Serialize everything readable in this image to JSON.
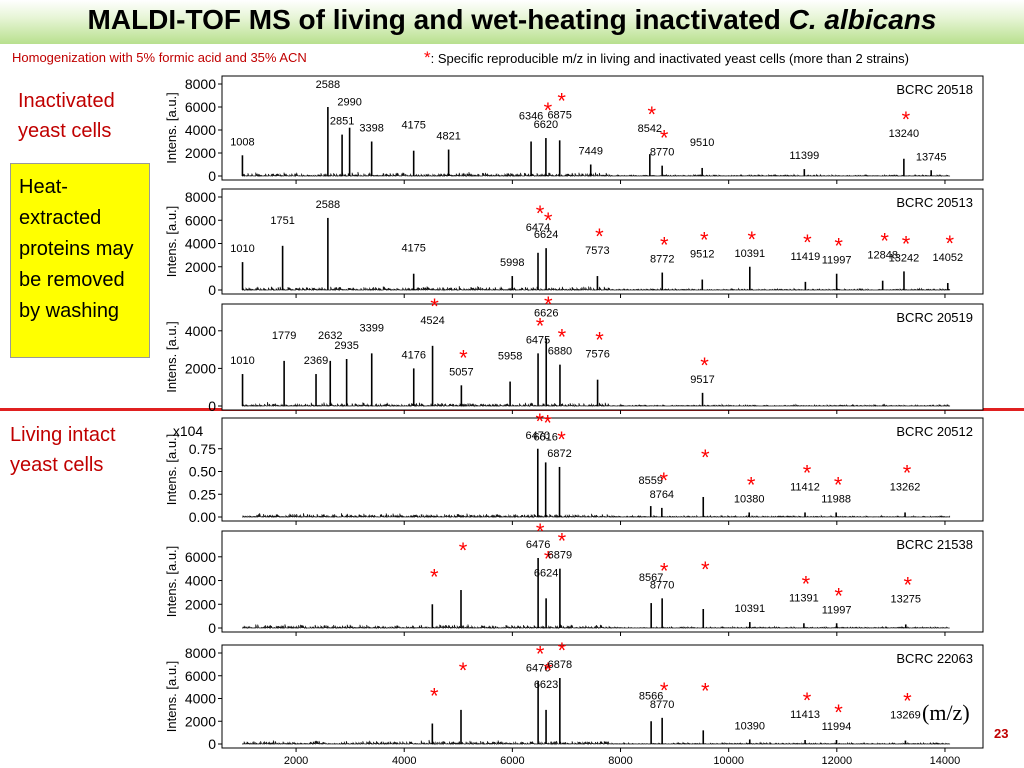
{
  "title": {
    "main": "MALDI-TOF MS of living and wet-heating inactivated ",
    "species": "C. albicans"
  },
  "subtitle_left": "Homogenization with 5% formic acid and 35% ACN",
  "legend_note": {
    "star": "*",
    "text": ": Specific reproducible m/z in living and inactivated yeast cells (more than 2 strains)"
  },
  "group_labels": {
    "inactivated": "Inactivated yeast cells",
    "living": "Living intact yeast cells"
  },
  "heat_box": "Heat-extracted proteins may be removed by washing",
  "mz_label": "(m/z)",
  "page_number": "23",
  "colors": {
    "star": "#ff0000",
    "divider": "#e02020",
    "label_red": "#c00000",
    "box": "#ffff00",
    "title_bar": "#b8e08e"
  },
  "chart_data": [
    {
      "type": "line",
      "strain": "BCRC 20518",
      "ylabel": "Intens. [a.u.]",
      "xlim": [
        1000,
        14500
      ],
      "ylim": [
        0,
        8000
      ],
      "yticks": [
        0,
        2000,
        4000,
        6000,
        8000
      ],
      "ytick_labels": [
        "0",
        "2000",
        "4000",
        "6000",
        "8000"
      ],
      "peaks": [
        {
          "mz": 1008,
          "y": 1800,
          "label": "1008"
        },
        {
          "mz": 2588,
          "y": 6000,
          "label": "2588"
        },
        {
          "mz": 2851,
          "y": 3600,
          "label": "2851"
        },
        {
          "mz": 2990,
          "y": 4200,
          "label": "2990"
        },
        {
          "mz": 3398,
          "y": 3000,
          "label": "3398"
        },
        {
          "mz": 4175,
          "y": 2200,
          "label": "4175"
        },
        {
          "mz": 4821,
          "y": 2300,
          "label": "4821"
        },
        {
          "mz": 6346,
          "y": 3000,
          "label": "6346"
        },
        {
          "mz": 6620,
          "y": 3300,
          "label": "6620",
          "star": true
        },
        {
          "mz": 6875,
          "y": 3100,
          "label": "6875",
          "star": true
        },
        {
          "mz": 7449,
          "y": 1000,
          "label": "7449"
        },
        {
          "mz": 8542,
          "y": 1900,
          "label": "8542",
          "star": true
        },
        {
          "mz": 8770,
          "y": 900,
          "label": "8770",
          "star": true
        },
        {
          "mz": 9510,
          "y": 700,
          "label": "9510"
        },
        {
          "mz": 11399,
          "y": 600,
          "label": "11399"
        },
        {
          "mz": 13240,
          "y": 1500,
          "label": "13240",
          "star": true
        },
        {
          "mz": 13745,
          "y": 500,
          "label": "13745"
        }
      ]
    },
    {
      "type": "line",
      "strain": "BCRC 20513",
      "ylabel": "Intens. [a.u.]",
      "xlim": [
        1000,
        14500
      ],
      "ylim": [
        0,
        8000
      ],
      "yticks": [
        0,
        2000,
        4000,
        6000,
        8000
      ],
      "ytick_labels": [
        "0",
        "2000",
        "4000",
        "6000",
        "8000"
      ],
      "peaks": [
        {
          "mz": 1010,
          "y": 2400,
          "label": "1010"
        },
        {
          "mz": 1751,
          "y": 3800,
          "label": "1751"
        },
        {
          "mz": 2588,
          "y": 6200,
          "label": "2588"
        },
        {
          "mz": 4175,
          "y": 1400,
          "label": "4175"
        },
        {
          "mz": 5998,
          "y": 1200,
          "label": "5998"
        },
        {
          "mz": 6474,
          "y": 3200,
          "label": "6474",
          "star": true
        },
        {
          "mz": 6624,
          "y": 3600,
          "label": "6624",
          "star": true
        },
        {
          "mz": 7573,
          "y": 1200,
          "label": "7573",
          "star": true
        },
        {
          "mz": 8772,
          "y": 1500,
          "label": "8772",
          "star": true
        },
        {
          "mz": 9512,
          "y": 900,
          "label": "9512",
          "star": true
        },
        {
          "mz": 10391,
          "y": 2000,
          "label": "10391",
          "star": true
        },
        {
          "mz": 11419,
          "y": 700,
          "label": "11419",
          "star": true
        },
        {
          "mz": 11997,
          "y": 1400,
          "label": "11997",
          "star": true
        },
        {
          "mz": 12848,
          "y": 800,
          "label": "12848",
          "star": true
        },
        {
          "mz": 13242,
          "y": 1600,
          "label": "13242",
          "star": true
        },
        {
          "mz": 14052,
          "y": 600,
          "label": "14052",
          "star": true
        }
      ]
    },
    {
      "type": "line",
      "strain": "BCRC 20519",
      "ylabel": "Intens. [a.u.]",
      "xlim": [
        1000,
        14500
      ],
      "ylim": [
        0,
        5000
      ],
      "yticks": [
        0,
        2000,
        4000
      ],
      "ytick_labels": [
        "0",
        "2000",
        "4000"
      ],
      "peaks": [
        {
          "mz": 1010,
          "y": 1700,
          "label": "1010"
        },
        {
          "mz": 1779,
          "y": 2400,
          "label": "1779"
        },
        {
          "mz": 2369,
          "y": 1700,
          "label": "2369"
        },
        {
          "mz": 2632,
          "y": 2400,
          "label": "2632"
        },
        {
          "mz": 2935,
          "y": 2500,
          "label": "2935"
        },
        {
          "mz": 3399,
          "y": 2800,
          "label": "3399"
        },
        {
          "mz": 4176,
          "y": 2000,
          "label": "4176"
        },
        {
          "mz": 4524,
          "y": 3200,
          "label": "4524",
          "star": true
        },
        {
          "mz": 5057,
          "y": 1100,
          "label": "5057",
          "star": true
        },
        {
          "mz": 5958,
          "y": 1300,
          "label": "5958"
        },
        {
          "mz": 6475,
          "y": 2800,
          "label": "6475",
          "star": true
        },
        {
          "mz": 6626,
          "y": 3600,
          "label": "6626",
          "star": true
        },
        {
          "mz": 6880,
          "y": 2200,
          "label": "6880",
          "star": true
        },
        {
          "mz": 7576,
          "y": 1400,
          "label": "7576",
          "star": true
        },
        {
          "mz": 9517,
          "y": 700,
          "label": "9517",
          "star": true
        }
      ]
    },
    {
      "type": "line",
      "strain": "BCRC 20512",
      "ylabel": "Intens. [a.u.]",
      "xlim": [
        1000,
        14500
      ],
      "ylim": [
        0,
        1
      ],
      "yticks": [
        0,
        0.25,
        0.5,
        0.75
      ],
      "ytick_labels": [
        "0.00",
        "0.25",
        "0.50",
        "0.75"
      ],
      "y_multiplier": "x10^4",
      "peaks": [
        {
          "mz": 6470,
          "y": 0.75,
          "label": "6470",
          "star": true
        },
        {
          "mz": 6616,
          "y": 0.6,
          "label": "6616",
          "star": true
        },
        {
          "mz": 6872,
          "y": 0.55,
          "label": "6872",
          "star": true
        },
        {
          "mz": 8559,
          "y": 0.12,
          "label": "8559"
        },
        {
          "mz": 8764,
          "y": 0.1,
          "label": "8764",
          "star": true
        },
        {
          "mz": 9530,
          "y": 0.22,
          "label": "",
          "star": true
        },
        {
          "mz": 10380,
          "y": 0.05,
          "label": "10380",
          "star": true
        },
        {
          "mz": 11412,
          "y": 0.05,
          "label": "11412",
          "star": true
        },
        {
          "mz": 11988,
          "y": 0.05,
          "label": "11988",
          "star": true
        },
        {
          "mz": 13262,
          "y": 0.05,
          "label": "13262",
          "star": true
        }
      ]
    },
    {
      "type": "line",
      "strain": "BCRC 21538",
      "ylabel": "Intens. [a.u.]",
      "xlim": [
        1000,
        14500
      ],
      "ylim": [
        0,
        7500
      ],
      "yticks": [
        0,
        2000,
        4000,
        6000
      ],
      "ytick_labels": [
        "0",
        "2000",
        "4000",
        "6000"
      ],
      "peaks": [
        {
          "mz": 4520,
          "y": 2000,
          "label": "",
          "star": true
        },
        {
          "mz": 5050,
          "y": 3200,
          "label": "",
          "star": true
        },
        {
          "mz": 6476,
          "y": 5900,
          "label": "6476",
          "star": true
        },
        {
          "mz": 6624,
          "y": 2500,
          "label": "6624",
          "star": true
        },
        {
          "mz": 6879,
          "y": 5000,
          "label": "6879",
          "star": true
        },
        {
          "mz": 8567,
          "y": 2100,
          "label": "8567"
        },
        {
          "mz": 8770,
          "y": 2500,
          "label": "8770",
          "star": true
        },
        {
          "mz": 9530,
          "y": 1600,
          "label": "",
          "star": true
        },
        {
          "mz": 10391,
          "y": 500,
          "label": "10391"
        },
        {
          "mz": 11391,
          "y": 400,
          "label": "11391",
          "star": true
        },
        {
          "mz": 11997,
          "y": 400,
          "label": "11997",
          "star": true
        },
        {
          "mz": 13275,
          "y": 300,
          "label": "13275",
          "star": true
        }
      ]
    },
    {
      "type": "line",
      "strain": "BCRC 22063",
      "ylabel": "Intens. [a.u.]",
      "xlim": [
        1000,
        14500
      ],
      "ylim": [
        0,
        8000
      ],
      "yticks": [
        0,
        2000,
        4000,
        6000,
        8000
      ],
      "ytick_labels": [
        "0",
        "2000",
        "4000",
        "6000",
        "8000"
      ],
      "xticks": [
        2000,
        4000,
        6000,
        8000,
        10000,
        12000,
        14000
      ],
      "xtick_labels": [
        "2000",
        "4000",
        "6000",
        "8000",
        "10000",
        "12000",
        "14000"
      ],
      "peaks": [
        {
          "mz": 4520,
          "y": 1800,
          "label": "",
          "star": true
        },
        {
          "mz": 5050,
          "y": 3000,
          "label": "",
          "star": true
        },
        {
          "mz": 6476,
          "y": 5500,
          "label": "6476",
          "star": true
        },
        {
          "mz": 6623,
          "y": 3000,
          "label": "6623",
          "star": true
        },
        {
          "mz": 6878,
          "y": 5800,
          "label": "6878",
          "star": true
        },
        {
          "mz": 8566,
          "y": 2000,
          "label": "8566"
        },
        {
          "mz": 8770,
          "y": 2300,
          "label": "8770",
          "star": true
        },
        {
          "mz": 9530,
          "y": 1200,
          "label": "",
          "star": true
        },
        {
          "mz": 10390,
          "y": 400,
          "label": "10390"
        },
        {
          "mz": 11413,
          "y": 350,
          "label": "11413",
          "star": true
        },
        {
          "mz": 11994,
          "y": 350,
          "label": "11994",
          "star": true
        },
        {
          "mz": 13269,
          "y": 300,
          "label": "13269",
          "star": true
        }
      ]
    }
  ]
}
